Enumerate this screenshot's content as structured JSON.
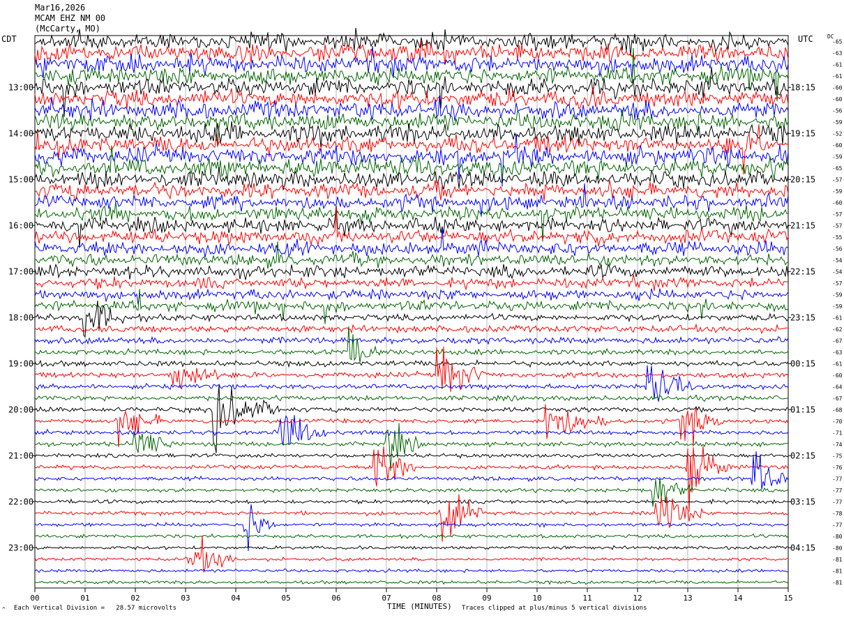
{
  "header": {
    "date": "Mar16,2026",
    "station": "MCAM EHZ NM 00",
    "location": "(McCarty, MO)"
  },
  "left_tz": "CDT",
  "right_tz": "UTC",
  "dc_label": "DC",
  "x_axis_title": "TIME (MINUTES)",
  "footer_left": "Each Vertical Division =   28.57 microvolts",
  "footer_right": "Traces clipped at plus/minus 5 vertical divisions",
  "footer_mark": "^",
  "chart_data": {
    "type": "line",
    "description_of_rows": "helicorder: each row is 15 minutes of vertical seismograph trace, colors cycle black, red, blue, green",
    "x_ticks": [
      "00",
      "01",
      "02",
      "03",
      "04",
      "05",
      "06",
      "07",
      "08",
      "09",
      "10",
      "11",
      "12",
      "13",
      "14",
      "15"
    ],
    "xlim": [
      0,
      15
    ],
    "left_hour_labels": [
      {
        "row": 4,
        "label": "13:00"
      },
      {
        "row": 8,
        "label": "14:00"
      },
      {
        "row": 12,
        "label": "15:00"
      },
      {
        "row": 16,
        "label": "16:00"
      },
      {
        "row": 20,
        "label": "17:00"
      },
      {
        "row": 24,
        "label": "18:00"
      },
      {
        "row": 28,
        "label": "19:00"
      },
      {
        "row": 32,
        "label": "20:00"
      },
      {
        "row": 36,
        "label": "21:00"
      },
      {
        "row": 40,
        "label": "22:00"
      },
      {
        "row": 44,
        "label": "23:00"
      }
    ],
    "right_hour_labels": [
      {
        "row": 4,
        "label": "18:15"
      },
      {
        "row": 8,
        "label": "19:15"
      },
      {
        "row": 12,
        "label": "20:15"
      },
      {
        "row": 16,
        "label": "21:15"
      },
      {
        "row": 20,
        "label": "22:15"
      },
      {
        "row": 24,
        "label": "23:15"
      },
      {
        "row": 28,
        "label": "00:15"
      },
      {
        "row": 32,
        "label": "01:15"
      },
      {
        "row": 36,
        "label": "02:15"
      },
      {
        "row": 40,
        "label": "03:15"
      },
      {
        "row": 44,
        "label": "04:15"
      }
    ],
    "dc_offsets": [
      "-65",
      "-63",
      "-61",
      "-61",
      "-60",
      "-60",
      "-56",
      "-59",
      "-52",
      "-60",
      "-59",
      "-65",
      "-57",
      "-59",
      "-60",
      "-57",
      "-57",
      "-55",
      "-56",
      "-54",
      "-54",
      "-57",
      "-59",
      "-59",
      "-61",
      "-62",
      "-67",
      "-63",
      "-61",
      "-60",
      "-64",
      "-67",
      "-68",
      "-70",
      "-71",
      "-74",
      "-75",
      "-76",
      "-77",
      "-77",
      "-77",
      "-78",
      "-77",
      "-80",
      "-80",
      "-81",
      "-81",
      "-81"
    ],
    "row_colors": [
      "#000000",
      "#ff0000",
      "#0000ff",
      "#006400"
    ],
    "noise_level_by_row": [
      5,
      5,
      5,
      5,
      5,
      5,
      5,
      5,
      5,
      5,
      5,
      5,
      4.5,
      4.5,
      4,
      4,
      4,
      4,
      4,
      3.5,
      3.5,
      3,
      3,
      3,
      2.5,
      2.5,
      2.5,
      2,
      2,
      2,
      1.8,
      1.8,
      1.8,
      1.6,
      1.6,
      1.6,
      1.5,
      1.5,
      1.5,
      1.4,
      1.4,
      1.4,
      1.3,
      1.3,
      1.2,
      1.2,
      1.2,
      1.2
    ],
    "events": [
      {
        "row": 24,
        "minute": 1.0,
        "duration": 0.8,
        "amplitude": 5
      },
      {
        "row": 27,
        "minute": 6.3,
        "duration": 0.6,
        "amplitude": 5
      },
      {
        "row": 29,
        "minute": 2.7,
        "duration": 1.0,
        "amplitude": 5
      },
      {
        "row": 29,
        "minute": 8.0,
        "duration": 1.0,
        "amplitude": 6
      },
      {
        "row": 30,
        "minute": 12.2,
        "duration": 0.9,
        "amplitude": 5
      },
      {
        "row": 32,
        "minute": 3.6,
        "duration": 1.3,
        "amplitude": 6
      },
      {
        "row": 33,
        "minute": 1.7,
        "duration": 0.8,
        "amplitude": 5
      },
      {
        "row": 33,
        "minute": 10.2,
        "duration": 1.2,
        "amplitude": 5
      },
      {
        "row": 33,
        "minute": 12.9,
        "duration": 0.8,
        "amplitude": 5
      },
      {
        "row": 34,
        "minute": 4.9,
        "duration": 0.9,
        "amplitude": 6
      },
      {
        "row": 35,
        "minute": 2.0,
        "duration": 0.8,
        "amplitude": 5
      },
      {
        "row": 35,
        "minute": 7.0,
        "duration": 0.7,
        "amplitude": 5
      },
      {
        "row": 37,
        "minute": 6.8,
        "duration": 0.8,
        "amplitude": 6
      },
      {
        "row": 37,
        "minute": 13.0,
        "duration": 0.9,
        "amplitude": 6
      },
      {
        "row": 38,
        "minute": 14.3,
        "duration": 0.7,
        "amplitude": 6
      },
      {
        "row": 39,
        "minute": 12.3,
        "duration": 0.8,
        "amplitude": 5
      },
      {
        "row": 41,
        "minute": 8.1,
        "duration": 0.8,
        "amplitude": 7
      },
      {
        "row": 41,
        "minute": 12.4,
        "duration": 0.9,
        "amplitude": 6
      },
      {
        "row": 42,
        "minute": 4.2,
        "duration": 0.6,
        "amplitude": 6
      },
      {
        "row": 45,
        "minute": 3.1,
        "duration": 0.9,
        "amplitude": 5
      }
    ]
  }
}
